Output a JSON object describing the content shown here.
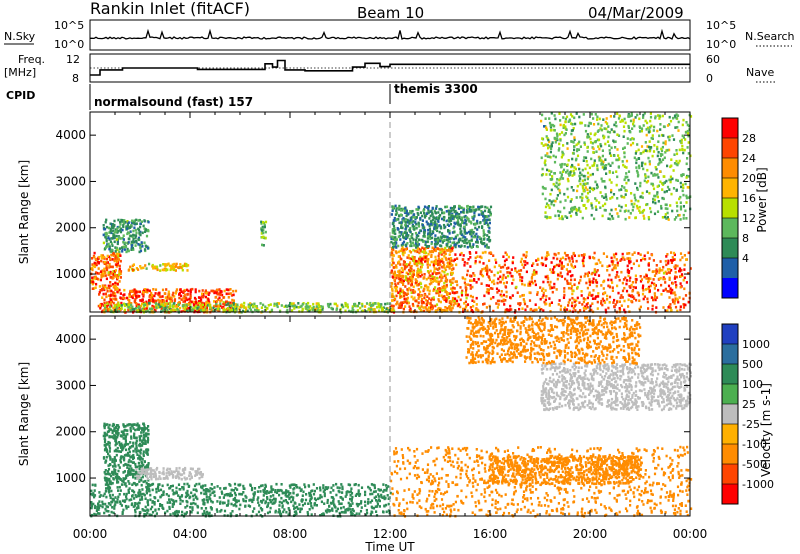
{
  "header": {
    "station": "Rankin Inlet (fitACF)",
    "beam": "Beam 10",
    "date": "04/Mar/2009"
  },
  "top_panels": {
    "nsky_label": "N.Sky",
    "nsky_ticks": [
      "10^5",
      "10^0"
    ],
    "nsearch_label": "N.Search",
    "nsearch_ticks": [
      "10^5",
      "10^0"
    ],
    "freq_label_1": "Freq.",
    "freq_label_2": "[MHz]",
    "freq_ticks": [
      "12",
      "8"
    ],
    "nave_label": "Nave",
    "nave_ticks": [
      "60",
      "0"
    ],
    "cpid_label": "CPID",
    "cpid_segments": [
      "normalsound (fast) 157",
      "themis 3300"
    ]
  },
  "axes": {
    "ylabel": "Slant Range [km]",
    "xlabel": "Time UT",
    "yticks": [
      "4000",
      "3000",
      "2000",
      "1000"
    ],
    "xticks": [
      "00:00",
      "04:00",
      "08:00",
      "12:00",
      "16:00",
      "20:00",
      "00:00"
    ]
  },
  "power_colorbar": {
    "label": "Power [dB]",
    "ticks": [
      "28",
      "24",
      "20",
      "16",
      "12",
      "8",
      "4"
    ],
    "colors": [
      "#ff0000",
      "#ff4500",
      "#ff8c00",
      "#ffb400",
      "#b8e000",
      "#5cb85c",
      "#2e8b57",
      "#1f5fa8",
      "#0000ff"
    ]
  },
  "velocity_colorbar": {
    "label": "Velocity [m s-1]",
    "ticks": [
      "1000",
      "500",
      "100",
      "25",
      "-25",
      "-100",
      "-500",
      "-1000"
    ],
    "colors": [
      "#2040c0",
      "#2b6e9e",
      "#2e8b57",
      "#4caf50",
      "#bdbdbd",
      "#ffb000",
      "#ff8c00",
      "#ff4500",
      "#ff0000"
    ]
  },
  "chart_data": {
    "type": "heatmap",
    "title": "Rankin Inlet (fitACF)",
    "xlabel": "Time UT",
    "ylabel": "Slant Range [km]",
    "x_range_hours": [
      0,
      24
    ],
    "y_range_km": [
      180,
      4500
    ],
    "boundary_time_hours": 12,
    "cpid_switch_hours": 12,
    "frequency_steps_mhz": [
      {
        "t0": 0.0,
        "t1": 0.4,
        "f": 8.5
      },
      {
        "t0": 0.4,
        "t1": 1.3,
        "f": 9.6
      },
      {
        "t0": 1.3,
        "t1": 4.3,
        "f": 10.0
      },
      {
        "t0": 4.3,
        "t1": 7.0,
        "f": 9.7
      },
      {
        "t0": 7.0,
        "t1": 7.3,
        "f": 10.9
      },
      {
        "t0": 7.3,
        "t1": 7.5,
        "f": 10.2
      },
      {
        "t0": 7.5,
        "t1": 7.8,
        "f": 11.6
      },
      {
        "t0": 7.8,
        "t1": 8.6,
        "f": 9.6
      },
      {
        "t0": 8.6,
        "t1": 10.5,
        "f": 9.4
      },
      {
        "t0": 10.5,
        "t1": 11.0,
        "f": 10.2
      },
      {
        "t0": 11.0,
        "t1": 11.6,
        "f": 11.0
      },
      {
        "t0": 11.6,
        "t1": 12.0,
        "f": 10.3
      },
      {
        "t0": 12.0,
        "t1": 24.0,
        "f": 10.8
      }
    ],
    "nave_reference": 8.0,
    "power_regions_db": [
      {
        "t0": 0.3,
        "t1": 5.8,
        "r0": 200,
        "r1": 700,
        "p": 28
      },
      {
        "t0": 0.0,
        "t1": 1.2,
        "r0": 700,
        "r1": 1500,
        "p": 26
      },
      {
        "t0": 0.5,
        "t1": 2.3,
        "r0": 1500,
        "r1": 2200,
        "p": 9
      },
      {
        "t0": 1.5,
        "t1": 4.0,
        "r0": 1100,
        "r1": 1250,
        "p": 20
      },
      {
        "t0": 0.5,
        "t1": 12.0,
        "r0": 200,
        "r1": 400,
        "p": 14
      },
      {
        "t0": 6.8,
        "t1": 7.0,
        "r0": 1600,
        "r1": 2200,
        "p": 14
      },
      {
        "t0": 12.0,
        "t1": 14.5,
        "r0": 200,
        "r1": 1600,
        "p": 24
      },
      {
        "t0": 14.5,
        "t1": 24.0,
        "r0": 200,
        "r1": 1500,
        "p": 27
      },
      {
        "t0": 12.0,
        "t1": 16.0,
        "r0": 1600,
        "r1": 2500,
        "p": 8
      },
      {
        "t0": 18.0,
        "t1": 24.0,
        "r0": 2200,
        "r1": 4500,
        "p": 13
      }
    ],
    "velocity_regions_ms": [
      {
        "t0": 0.0,
        "t1": 12.0,
        "r0": 200,
        "r1": 900,
        "v": 150
      },
      {
        "t0": 0.5,
        "t1": 2.3,
        "r0": 900,
        "r1": 2200,
        "v": 300
      },
      {
        "t0": 1.8,
        "t1": 4.5,
        "r0": 1000,
        "r1": 1250,
        "v": 0
      },
      {
        "t0": 12.0,
        "t1": 24.0,
        "r0": 200,
        "r1": 1700,
        "v": -200
      },
      {
        "t0": 16.0,
        "t1": 22.0,
        "r0": 900,
        "r1": 1500,
        "v": -300
      },
      {
        "t0": 18.0,
        "t1": 24.0,
        "r0": 2500,
        "r1": 3500,
        "v": 0
      },
      {
        "t0": 15.0,
        "t1": 22.0,
        "r0": 3500,
        "r1": 4500,
        "v": -150
      }
    ]
  }
}
